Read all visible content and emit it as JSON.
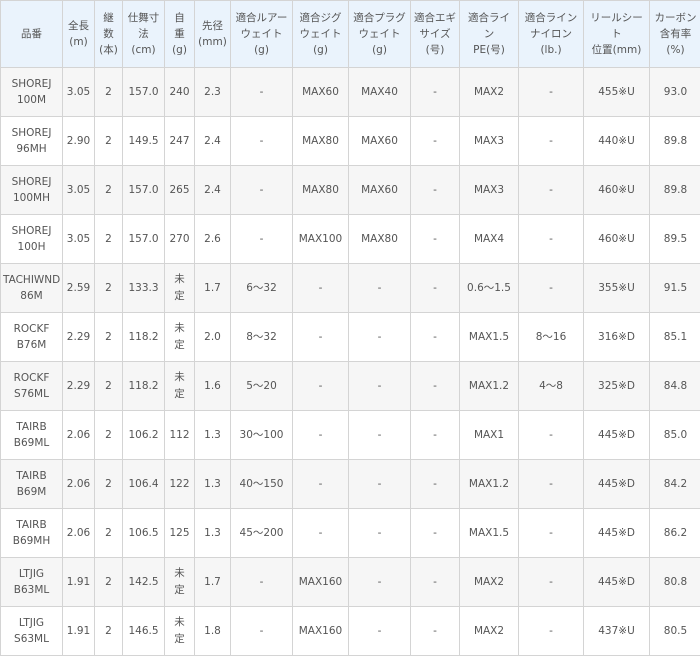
{
  "colors": {
    "header_bg": "#eaf3fc",
    "row_alt_bg": "#f6f6f6",
    "border": "#d4d4d4",
    "text": "#555555"
  },
  "headers": [
    "品番",
    "全長\n(m)",
    "継\n数\n(本)",
    "仕舞寸\n法\n(cm)",
    "自\n重\n(g)",
    "先径\n(mm)",
    "適合ルアー\nウェイト\n(g)",
    "適合ジグ\nウェイト\n(g)",
    "適合プラグ\nウェイト\n(g)",
    "適合エギ\nサイズ\n(号)",
    "適合ライ\nン\nPE(号)",
    "適合ライン\nナイロン\n(lb.)",
    "リールシー\nト\n位置(mm)",
    "カーボン\n含有率\n(%)"
  ],
  "rows": [
    [
      "SHOREJ\n100M",
      "3.05",
      "2",
      "157.0",
      "240",
      "2.3",
      "-",
      "MAX60",
      "MAX40",
      "-",
      "MAX2",
      "-",
      "455※U",
      "93.0"
    ],
    [
      "SHOREJ\n96MH",
      "2.90",
      "2",
      "149.5",
      "247",
      "2.4",
      "-",
      "MAX80",
      "MAX60",
      "-",
      "MAX3",
      "-",
      "440※U",
      "89.8"
    ],
    [
      "SHOREJ\n100MH",
      "3.05",
      "2",
      "157.0",
      "265",
      "2.4",
      "-",
      "MAX80",
      "MAX60",
      "-",
      "MAX3",
      "-",
      "460※U",
      "89.8"
    ],
    [
      "SHOREJ\n100H",
      "3.05",
      "2",
      "157.0",
      "270",
      "2.6",
      "-",
      "MAX100",
      "MAX80",
      "-",
      "MAX4",
      "-",
      "460※U",
      "89.5"
    ],
    [
      "TACHIWND\n86M",
      "2.59",
      "2",
      "133.3",
      "未定",
      "1.7",
      "6〜32",
      "-",
      "-",
      "-",
      "0.6〜1.5",
      "-",
      "355※U",
      "91.5"
    ],
    [
      "ROCKF\nB76M",
      "2.29",
      "2",
      "118.2",
      "未定",
      "2.0",
      "8〜32",
      "-",
      "-",
      "-",
      "MAX1.5",
      "8〜16",
      "316※D",
      "85.1"
    ],
    [
      "ROCKF\nS76ML",
      "2.29",
      "2",
      "118.2",
      "未定",
      "1.6",
      "5〜20",
      "-",
      "-",
      "-",
      "MAX1.2",
      "4〜8",
      "325※D",
      "84.8"
    ],
    [
      "TAIRB\nB69ML",
      "2.06",
      "2",
      "106.2",
      "112",
      "1.3",
      "30〜100",
      "-",
      "-",
      "-",
      "MAX1",
      "-",
      "445※D",
      "85.0"
    ],
    [
      "TAIRB\nB69M",
      "2.06",
      "2",
      "106.4",
      "122",
      "1.3",
      "40〜150",
      "-",
      "-",
      "-",
      "MAX1.2",
      "-",
      "445※D",
      "84.2"
    ],
    [
      "TAIRB\nB69MH",
      "2.06",
      "2",
      "106.5",
      "125",
      "1.3",
      "45〜200",
      "-",
      "-",
      "-",
      "MAX1.5",
      "-",
      "445※D",
      "86.2"
    ],
    [
      "LTJIG\nB63ML",
      "1.91",
      "2",
      "142.5",
      "未定",
      "1.7",
      "-",
      "MAX160",
      "-",
      "-",
      "MAX2",
      "-",
      "445※D",
      "80.8"
    ],
    [
      "LTJIG\nS63ML",
      "1.91",
      "2",
      "146.5",
      "未定",
      "1.8",
      "-",
      "MAX160",
      "-",
      "-",
      "MAX2",
      "-",
      "437※U",
      "80.5"
    ]
  ]
}
